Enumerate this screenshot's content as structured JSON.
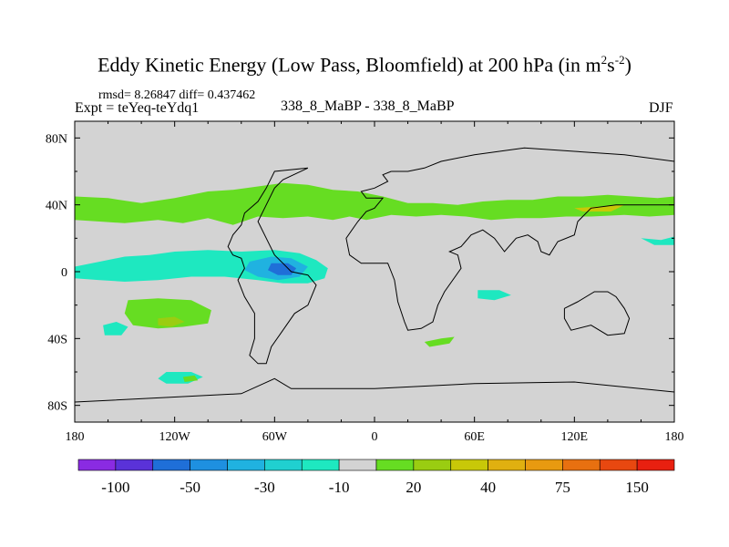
{
  "chart_data": {
    "type": "heatmap",
    "title": "Eddy Kinetic Energy (Low Pass, Bloomfield) at 200 hPa (in m",
    "title_units": {
      "exp1": "2",
      "mid": "s",
      "exp2": "-2",
      "tail": ")"
    },
    "stats_text": "rmsd= 8.26847 diff= 0.437462",
    "experiment_text": "Expt = teYeq-teYdq1",
    "center_text": "338_8_MaBP - 338_8_MaBP",
    "season": "DJF",
    "xlim": [
      -180,
      180
    ],
    "ylim": [
      -90,
      90
    ],
    "x_ticks": [
      {
        "value": -180,
        "label": "180"
      },
      {
        "value": -120,
        "label": "120W"
      },
      {
        "value": -60,
        "label": "60W"
      },
      {
        "value": 0,
        "label": "0"
      },
      {
        "value": 60,
        "label": "60E"
      },
      {
        "value": 120,
        "label": "120E"
      },
      {
        "value": 180,
        "label": "180"
      }
    ],
    "y_ticks": [
      {
        "value": 80,
        "label": "80N"
      },
      {
        "value": 40,
        "label": "40N"
      },
      {
        "value": 0,
        "label": "0"
      },
      {
        "value": -40,
        "label": "40S"
      },
      {
        "value": -80,
        "label": "80S"
      }
    ],
    "background_color": "#d3d3d3",
    "colorbar": {
      "colors": [
        "#8a2be2",
        "#5a32d8",
        "#1f6fd8",
        "#1e90e0",
        "#20b2e0",
        "#20d0d0",
        "#1ee8c0",
        "#d3d3d3",
        "#66dd22",
        "#9acd11",
        "#c8c808",
        "#e0b010",
        "#e89a10",
        "#e87010",
        "#e84810",
        "#e82010"
      ],
      "labels": [
        {
          "boundary": 1,
          "text": "-100"
        },
        {
          "boundary": 3,
          "text": "-50"
        },
        {
          "boundary": 5,
          "text": "-30"
        },
        {
          "boundary": 7,
          "text": "-10"
        },
        {
          "boundary": 9,
          "text": "20"
        },
        {
          "boundary": 11,
          "text": "40"
        },
        {
          "boundary": 13,
          "text": "75"
        },
        {
          "boundary": 15,
          "text": "150"
        }
      ]
    },
    "features": [
      {
        "name": "nh-jet-positive-band",
        "level": 20,
        "color": "#66dd22",
        "lonlat": [
          [
            -180,
            45
          ],
          [
            -160,
            44
          ],
          [
            -140,
            41
          ],
          [
            -120,
            44
          ],
          [
            -100,
            48
          ],
          [
            -85,
            49
          ],
          [
            -70,
            51
          ],
          [
            -55,
            53
          ],
          [
            -40,
            52
          ],
          [
            -25,
            49
          ],
          [
            -10,
            48
          ],
          [
            5,
            45
          ],
          [
            20,
            41
          ],
          [
            35,
            41
          ],
          [
            50,
            40
          ],
          [
            65,
            42
          ],
          [
            80,
            43
          ],
          [
            95,
            43
          ],
          [
            110,
            45
          ],
          [
            125,
            45
          ],
          [
            140,
            46
          ],
          [
            155,
            45
          ],
          [
            170,
            44
          ],
          [
            180,
            45
          ],
          [
            180,
            34
          ],
          [
            165,
            33
          ],
          [
            150,
            34
          ],
          [
            130,
            33
          ],
          [
            115,
            33
          ],
          [
            100,
            32
          ],
          [
            85,
            32
          ],
          [
            70,
            31
          ],
          [
            55,
            33
          ],
          [
            40,
            34
          ],
          [
            25,
            33
          ],
          [
            10,
            34
          ],
          [
            -5,
            31
          ],
          [
            -15,
            33
          ],
          [
            -25,
            31
          ],
          [
            -40,
            33
          ],
          [
            -55,
            32
          ],
          [
            -70,
            33
          ],
          [
            -85,
            28
          ],
          [
            -100,
            32
          ],
          [
            -115,
            29
          ],
          [
            -130,
            31
          ],
          [
            -150,
            29
          ],
          [
            -165,
            30
          ],
          [
            -180,
            31
          ]
        ]
      },
      {
        "name": "tropical-negative-band",
        "level": -10,
        "color": "#1ee8c0",
        "lonlat": [
          [
            -180,
            3
          ],
          [
            -165,
            6
          ],
          [
            -150,
            9
          ],
          [
            -135,
            10
          ],
          [
            -120,
            12
          ],
          [
            -100,
            13
          ],
          [
            -80,
            12
          ],
          [
            -60,
            13
          ],
          [
            -45,
            11
          ],
          [
            -35,
            7
          ],
          [
            -28,
            2
          ],
          [
            -30,
            -4
          ],
          [
            -40,
            -7
          ],
          [
            -55,
            -7
          ],
          [
            -70,
            -5
          ],
          [
            -90,
            -3
          ],
          [
            -110,
            -3
          ],
          [
            -130,
            -5
          ],
          [
            -150,
            -6
          ],
          [
            -165,
            -5
          ],
          [
            -180,
            -4
          ]
        ]
      },
      {
        "name": "tropical-negative-core",
        "level": -30,
        "color": "#20b2e0",
        "lonlat": [
          [
            -75,
            6
          ],
          [
            -62,
            9
          ],
          [
            -50,
            8
          ],
          [
            -40,
            3
          ],
          [
            -45,
            -3
          ],
          [
            -58,
            -5
          ],
          [
            -70,
            -3
          ],
          [
            -78,
            1
          ]
        ]
      },
      {
        "name": "tropical-negative-center",
        "level": -50,
        "color": "#1f6fd8",
        "lonlat": [
          [
            -62,
            5
          ],
          [
            -52,
            5
          ],
          [
            -47,
            2
          ],
          [
            -50,
            -2
          ],
          [
            -58,
            -2
          ],
          [
            -64,
            1
          ]
        ]
      },
      {
        "name": "south-pacific-positive-blob",
        "level": 20,
        "color": "#66dd22",
        "lonlat": [
          [
            -148,
            -17
          ],
          [
            -130,
            -16
          ],
          [
            -110,
            -17
          ],
          [
            -98,
            -23
          ],
          [
            -100,
            -31
          ],
          [
            -115,
            -33
          ],
          [
            -130,
            -34
          ],
          [
            -145,
            -32
          ],
          [
            -150,
            -25
          ]
        ]
      },
      {
        "name": "south-pacific-positive-core",
        "level": 20,
        "color": "#9acd11",
        "lonlat": [
          [
            -130,
            -28
          ],
          [
            -120,
            -27
          ],
          [
            -114,
            -30
          ],
          [
            -122,
            -33
          ],
          [
            -130,
            -32
          ]
        ]
      },
      {
        "name": "south-pacific-negative-blob",
        "level": -10,
        "color": "#1ee8c0",
        "lonlat": [
          [
            -163,
            -32
          ],
          [
            -155,
            -30
          ],
          [
            -148,
            -33
          ],
          [
            -152,
            -38
          ],
          [
            -162,
            -38
          ]
        ]
      },
      {
        "name": "southern-ocean-negative-blob",
        "level": -10,
        "color": "#1ee8c0",
        "lonlat": [
          [
            -125,
            -60
          ],
          [
            -110,
            -60
          ],
          [
            -103,
            -63
          ],
          [
            -112,
            -67
          ],
          [
            -125,
            -67
          ],
          [
            -130,
            -64
          ]
        ]
      },
      {
        "name": "southern-ocean-positive-spot",
        "level": 20,
        "color": "#66dd22",
        "lonlat": [
          [
            -115,
            -63
          ],
          [
            -108,
            -62
          ],
          [
            -106,
            -65
          ],
          [
            -114,
            -66
          ]
        ]
      },
      {
        "name": "indian-ocean-negative-blob",
        "level": -10,
        "color": "#1ee8c0",
        "lonlat": [
          [
            62,
            -11
          ],
          [
            75,
            -11
          ],
          [
            82,
            -14
          ],
          [
            72,
            -17
          ],
          [
            62,
            -16
          ]
        ]
      },
      {
        "name": "africa-positive-blob",
        "level": 20,
        "color": "#66dd22",
        "lonlat": [
          [
            30,
            -42
          ],
          [
            40,
            -40
          ],
          [
            48,
            -39
          ],
          [
            45,
            -43
          ],
          [
            33,
            -45
          ]
        ]
      },
      {
        "name": "nh-positive-core",
        "level": 40,
        "color": "#c8c808",
        "lonlat": [
          [
            120,
            38
          ],
          [
            135,
            39
          ],
          [
            150,
            40
          ],
          [
            142,
            36
          ],
          [
            125,
            36
          ]
        ]
      },
      {
        "name": "east-pacific-negative-blob",
        "level": -10,
        "color": "#1ee8c0",
        "lonlat": [
          [
            160,
            20
          ],
          [
            172,
            19
          ],
          [
            180,
            21
          ],
          [
            180,
            16
          ],
          [
            168,
            16
          ]
        ]
      }
    ],
    "coastlines": [
      {
        "name": "americas",
        "lonlat": [
          [
            -40,
            62
          ],
          [
            -60,
            60
          ],
          [
            -65,
            50
          ],
          [
            -70,
            42
          ],
          [
            -78,
            35
          ],
          [
            -80,
            28
          ],
          [
            -85,
            22
          ],
          [
            -88,
            15
          ],
          [
            -85,
            10
          ],
          [
            -80,
            8
          ],
          [
            -78,
            2
          ],
          [
            -82,
            -5
          ],
          [
            -78,
            -15
          ],
          [
            -72,
            -25
          ],
          [
            -72,
            -40
          ],
          [
            -75,
            -50
          ],
          [
            -70,
            -55
          ],
          [
            -65,
            -55
          ],
          [
            -62,
            -45
          ],
          [
            -55,
            -35
          ],
          [
            -48,
            -25
          ],
          [
            -40,
            -20
          ],
          [
            -35,
            -8
          ],
          [
            -40,
            -2
          ],
          [
            -50,
            0
          ],
          [
            -55,
            5
          ],
          [
            -60,
            10
          ],
          [
            -65,
            20
          ],
          [
            -70,
            30
          ],
          [
            -65,
            40
          ],
          [
            -60,
            50
          ],
          [
            -55,
            55
          ],
          [
            -40,
            62
          ]
        ]
      },
      {
        "name": "eurasia-africa",
        "lonlat": [
          [
            10,
            60
          ],
          [
            20,
            60
          ],
          [
            30,
            62
          ],
          [
            40,
            66
          ],
          [
            60,
            70
          ],
          [
            90,
            74
          ],
          [
            120,
            72
          ],
          [
            150,
            70
          ],
          [
            180,
            66
          ],
          [
            180,
            40
          ],
          [
            160,
            40
          ],
          [
            145,
            40
          ],
          [
            130,
            38
          ],
          [
            122,
            30
          ],
          [
            120,
            22
          ],
          [
            110,
            18
          ],
          [
            105,
            10
          ],
          [
            100,
            12
          ],
          [
            98,
            18
          ],
          [
            92,
            22
          ],
          [
            85,
            20
          ],
          [
            78,
            12
          ],
          [
            72,
            20
          ],
          [
            65,
            25
          ],
          [
            58,
            22
          ],
          [
            52,
            15
          ],
          [
            45,
            12
          ],
          [
            50,
            10
          ],
          [
            52,
            2
          ],
          [
            42,
            -12
          ],
          [
            38,
            -20
          ],
          [
            35,
            -30
          ],
          [
            28,
            -34
          ],
          [
            20,
            -35
          ],
          [
            18,
            -30
          ],
          [
            14,
            -18
          ],
          [
            12,
            -5
          ],
          [
            10,
            0
          ],
          [
            8,
            5
          ],
          [
            0,
            5
          ],
          [
            -8,
            5
          ],
          [
            -15,
            10
          ],
          [
            -17,
            20
          ],
          [
            -10,
            30
          ],
          [
            -5,
            36
          ],
          [
            0,
            38
          ],
          [
            5,
            44
          ],
          [
            -5,
            44
          ],
          [
            -8,
            48
          ],
          [
            0,
            50
          ],
          [
            8,
            54
          ],
          [
            5,
            58
          ],
          [
            10,
            60
          ]
        ]
      },
      {
        "name": "australia",
        "lonlat": [
          [
            114,
            -22
          ],
          [
            122,
            -18
          ],
          [
            132,
            -12
          ],
          [
            140,
            -12
          ],
          [
            145,
            -15
          ],
          [
            150,
            -22
          ],
          [
            153,
            -28
          ],
          [
            150,
            -37
          ],
          [
            140,
            -38
          ],
          [
            130,
            -32
          ],
          [
            118,
            -35
          ],
          [
            114,
            -28
          ],
          [
            114,
            -22
          ]
        ]
      },
      {
        "name": "antarctica",
        "lonlat": [
          [
            -180,
            -78
          ],
          [
            -120,
            -75
          ],
          [
            -80,
            -73
          ],
          [
            -60,
            -64
          ],
          [
            -50,
            -70
          ],
          [
            0,
            -70
          ],
          [
            60,
            -67
          ],
          [
            120,
            -66
          ],
          [
            180,
            -72
          ],
          [
            180,
            -90
          ],
          [
            -180,
            -90
          ],
          [
            -180,
            -78
          ]
        ]
      }
    ]
  }
}
